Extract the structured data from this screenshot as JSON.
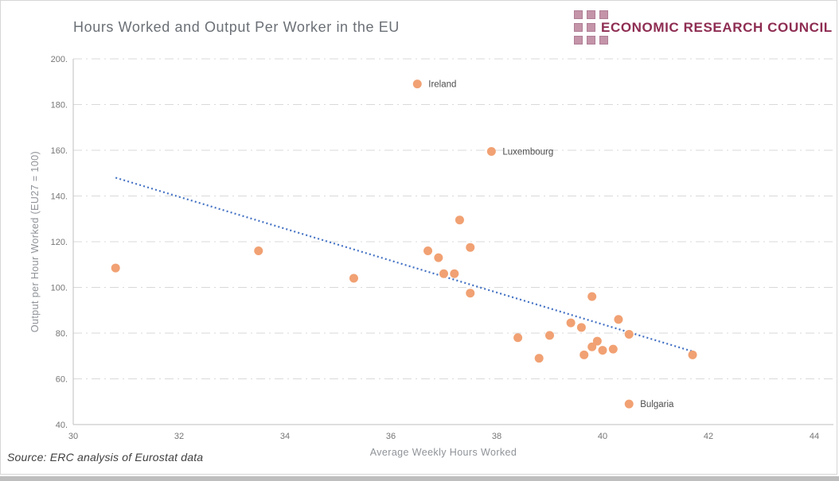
{
  "header": {
    "logo_text": "ECONOMIC RESEARCH COUNCIL"
  },
  "footer": {
    "source_note": "Source: ERC analysis of Eurostat data"
  },
  "colors": {
    "point": "#F1A173",
    "trend": "#4472C4",
    "grid": "#D9D9D9",
    "axis": "#BFBFBF",
    "tick_text": "#767676",
    "annotation_text": "#4D4D4D",
    "title_text": "#6B7076",
    "logo_text": "#8E2D52",
    "logo_square": "#C494A8"
  },
  "chart_data": {
    "type": "scatter",
    "title": "Hours Worked and Output Per Worker in the EU",
    "xlabel": "Average Weekly Hours Worked",
    "ylabel": "Output per Hour Worked (EU27 = 100)",
    "xlim": [
      30,
      44
    ],
    "ylim": [
      40,
      200
    ],
    "x_ticks": [
      30,
      32,
      34,
      36,
      38,
      40,
      42,
      44
    ],
    "y_ticks": [
      40,
      60,
      80,
      100,
      120,
      140,
      160,
      180,
      200
    ],
    "y_tick_suffix": ".",
    "grid": "horizontal dash-dot gridlines",
    "legend": "none",
    "points": [
      {
        "x": 30.8,
        "y": 108.5
      },
      {
        "x": 33.5,
        "y": 116
      },
      {
        "x": 35.3,
        "y": 104
      },
      {
        "x": 36.5,
        "y": 189,
        "label": "Ireland"
      },
      {
        "x": 36.7,
        "y": 116
      },
      {
        "x": 36.9,
        "y": 113
      },
      {
        "x": 37.0,
        "y": 106
      },
      {
        "x": 37.2,
        "y": 106
      },
      {
        "x": 37.3,
        "y": 129.5
      },
      {
        "x": 37.5,
        "y": 117.5
      },
      {
        "x": 37.5,
        "y": 97.5
      },
      {
        "x": 37.9,
        "y": 159.5,
        "label": "Luxembourg"
      },
      {
        "x": 38.4,
        "y": 78
      },
      {
        "x": 38.8,
        "y": 69
      },
      {
        "x": 39.0,
        "y": 79
      },
      {
        "x": 39.4,
        "y": 84.5
      },
      {
        "x": 39.6,
        "y": 82.5
      },
      {
        "x": 39.65,
        "y": 70.5
      },
      {
        "x": 39.8,
        "y": 96
      },
      {
        "x": 39.8,
        "y": 74
      },
      {
        "x": 39.9,
        "y": 76.5
      },
      {
        "x": 40.0,
        "y": 72.5
      },
      {
        "x": 40.2,
        "y": 73
      },
      {
        "x": 40.3,
        "y": 86
      },
      {
        "x": 40.5,
        "y": 79.5
      },
      {
        "x": 40.5,
        "y": 49,
        "label": "Bulgaria"
      },
      {
        "x": 41.7,
        "y": 70.5
      }
    ],
    "labeled_points": [
      "Ireland",
      "Luxembourg",
      "Bulgaria"
    ],
    "trend_line": {
      "x1": 30.8,
      "y1": 148,
      "x2": 41.7,
      "y2": 72,
      "style": "dotted"
    }
  }
}
